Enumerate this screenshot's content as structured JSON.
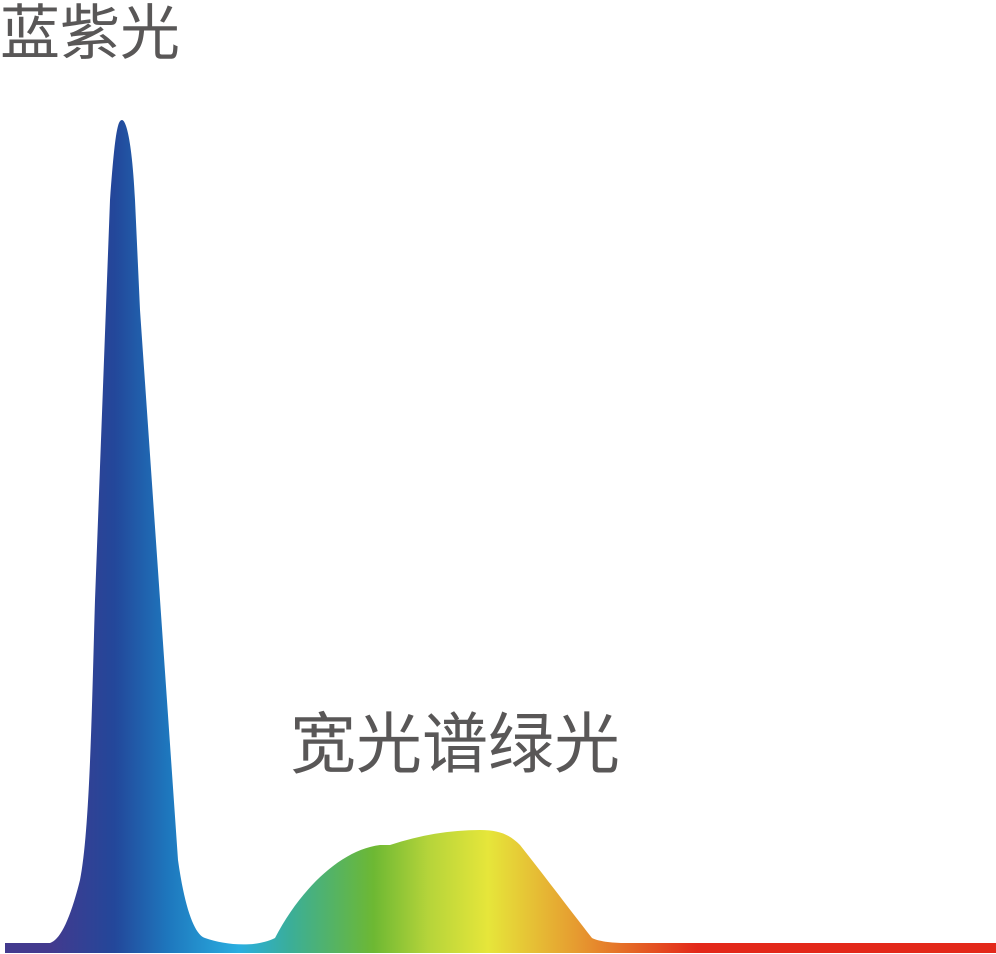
{
  "labels": {
    "blue_violet": "蓝紫光",
    "broad_green": "宽光谱绿光"
  },
  "colors": {
    "text": "#595757",
    "violet": "#433a8e",
    "blue": "#23479a",
    "cyan": "#2aaee0",
    "green": "#6db833",
    "yellow": "#e6e63a",
    "orange": "#e69a30",
    "red": "#e3281a"
  }
}
